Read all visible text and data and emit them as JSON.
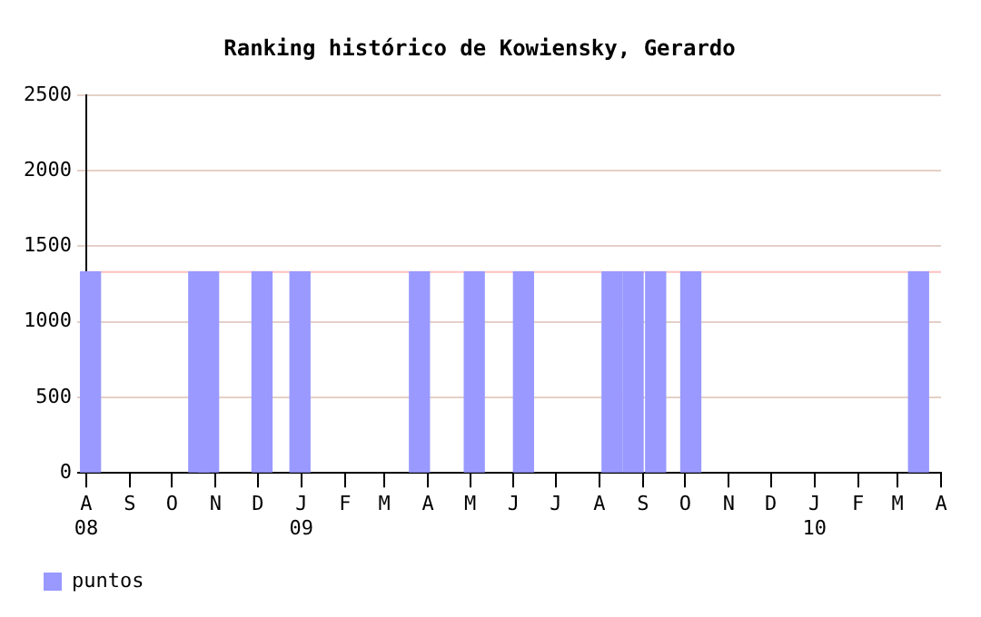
{
  "chart_data": {
    "type": "bar",
    "title": "Ranking histórico de Kowiensky, Gerardo",
    "x": [
      "2008-08-04",
      "2008-10-20",
      "2008-10-27",
      "2008-12-04",
      "2008-12-31",
      "2009-03-26",
      "2009-05-04",
      "2009-06-08",
      "2009-08-10",
      "2009-08-25",
      "2009-09-10",
      "2009-10-05",
      "2010-03-16"
    ],
    "series": [
      {
        "name": "puntos",
        "color": "#9999ff",
        "values": [
          1330,
          1330,
          1330,
          1330,
          1330,
          1330,
          1330,
          1330,
          1330,
          1330,
          1330,
          1330,
          1330
        ]
      }
    ],
    "xlim": [
      "2008-08",
      "2010-04"
    ],
    "xticks": [
      {
        "value": "2008-08",
        "label": "A\n08"
      },
      {
        "value": "2008-09",
        "label": "S"
      },
      {
        "value": "2008-10",
        "label": "O"
      },
      {
        "value": "2008-11",
        "label": "N"
      },
      {
        "value": "2008-12",
        "label": "D"
      },
      {
        "value": "2009-01",
        "label": "J\n09"
      },
      {
        "value": "2009-02",
        "label": "F"
      },
      {
        "value": "2009-03",
        "label": "M"
      },
      {
        "value": "2009-04",
        "label": "A"
      },
      {
        "value": "2009-05",
        "label": "M"
      },
      {
        "value": "2009-06",
        "label": "J"
      },
      {
        "value": "2009-07",
        "label": "J"
      },
      {
        "value": "2009-08",
        "label": "A"
      },
      {
        "value": "2009-09",
        "label": "S"
      },
      {
        "value": "2009-10",
        "label": "O"
      },
      {
        "value": "2009-11",
        "label": "N"
      },
      {
        "value": "2009-12",
        "label": "D"
      },
      {
        "value": "2010-01",
        "label": "J\n10"
      },
      {
        "value": "2010-02",
        "label": "F"
      },
      {
        "value": "2010-03",
        "label": "M"
      },
      {
        "value": "2010-04",
        "label": "A"
      }
    ],
    "ylim": [
      0,
      2500
    ],
    "yticks": [
      0,
      500,
      1000,
      1500,
      2000,
      2500
    ],
    "ref_lines": [
      {
        "axis": "y",
        "value": 1330,
        "color": "#ffc0c0"
      }
    ],
    "grid": "y",
    "legend": "bottom left"
  }
}
